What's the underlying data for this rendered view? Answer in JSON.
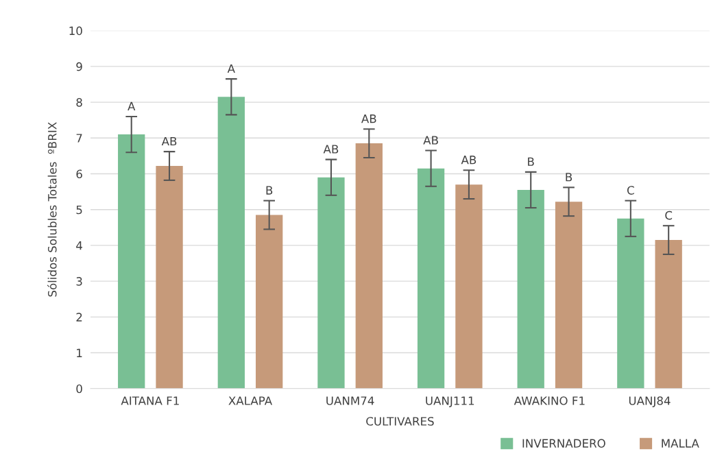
{
  "chart_data": {
    "type": "bar",
    "xlabel": "CULTIVARES",
    "ylabel": "Sólidos Solubles Totales  ºBRIX",
    "categories": [
      "AITANA F1",
      "XALAPA",
      "UANM74",
      "UANJ111",
      "AWAKINO F1",
      "UANJ84"
    ],
    "series": [
      {
        "name": "INVERNADERO",
        "color": "#79bf94",
        "values": [
          7.1,
          8.15,
          5.9,
          6.15,
          5.55,
          4.75
        ],
        "errors": [
          0.5,
          0.5,
          0.5,
          0.5,
          0.5,
          0.5
        ]
      },
      {
        "name": "MALLA",
        "color": "#c69a7a",
        "values": [
          6.22,
          4.85,
          6.85,
          5.7,
          5.22,
          4.15
        ],
        "errors": [
          0.4,
          0.4,
          0.4,
          0.4,
          0.4,
          0.4
        ]
      }
    ],
    "ylim": [
      0,
      10
    ],
    "yticks": [
      0,
      1,
      2,
      3,
      4,
      5,
      6,
      7,
      8,
      9,
      10
    ],
    "grid": "y",
    "legend": "bottom right",
    "annotations": [
      "A",
      "AB",
      "A",
      "B",
      "AB",
      "AB",
      "AB",
      "AB",
      "B",
      "B",
      "C",
      "C"
    ]
  }
}
